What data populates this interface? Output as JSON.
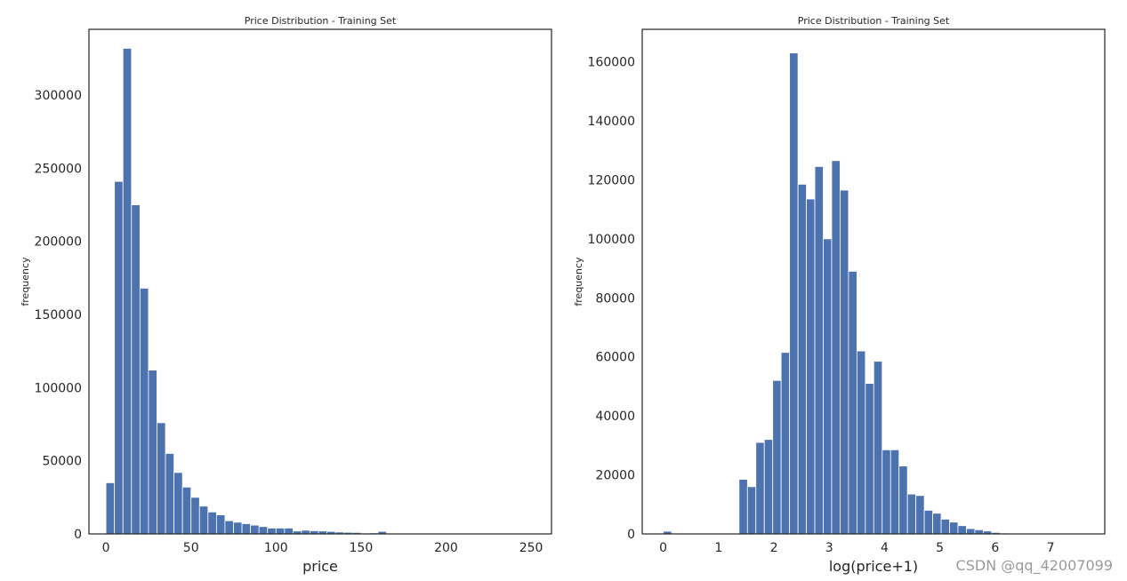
{
  "watermark": "CSDN @qq_42007099",
  "chart_data": [
    {
      "type": "bar",
      "title": "Price Distribution - Training Set",
      "xlabel": "price",
      "ylabel": "frequency",
      "xlim": [
        -10,
        262
      ],
      "ylim": [
        0,
        345000
      ],
      "xticks": [
        0,
        50,
        100,
        150,
        200,
        250
      ],
      "yticks": [
        0,
        50000,
        100000,
        150000,
        200000,
        250000,
        300000
      ],
      "color": "#4c72b0",
      "bins": 50,
      "bin_start": 0,
      "bin_width": 5.0,
      "values": [
        35000,
        241000,
        332000,
        225000,
        168000,
        112000,
        76000,
        55000,
        42000,
        32000,
        25000,
        19000,
        15000,
        13000,
        9000,
        8000,
        7000,
        6000,
        5000,
        4000,
        4000,
        4000,
        2000,
        2500,
        2200,
        2000,
        1700,
        1300,
        1100,
        1000,
        600,
        700,
        1700,
        500,
        400,
        300,
        250,
        200,
        150,
        120,
        100,
        80,
        60,
        50,
        40,
        30,
        25,
        20,
        15,
        10
      ],
      "grid": false
    },
    {
      "type": "bar",
      "title": "Price Distribution - Training Set",
      "xlabel": "log(price+1)",
      "ylabel": "frequency",
      "xlim": [
        -0.38,
        7.98
      ],
      "ylim": [
        0,
        171000
      ],
      "xticks": [
        0,
        1,
        2,
        3,
        4,
        5,
        6,
        7
      ],
      "yticks": [
        0,
        20000,
        40000,
        60000,
        80000,
        100000,
        120000,
        140000,
        160000
      ],
      "color": "#4c72b0",
      "bins": 50,
      "bin_start": 0,
      "bin_width": 0.1522,
      "values": [
        900,
        0,
        0,
        0,
        0,
        0,
        0,
        0,
        0,
        18500,
        16000,
        31000,
        32000,
        52000,
        61500,
        163000,
        118500,
        113500,
        124500,
        100000,
        126500,
        116500,
        89000,
        62000,
        51000,
        58500,
        28500,
        28500,
        23000,
        13500,
        13000,
        8000,
        7000,
        5000,
        4000,
        2800,
        1800,
        1400,
        1000,
        500,
        300,
        150,
        100,
        80,
        50,
        30,
        20,
        10,
        5,
        2
      ],
      "grid": false
    }
  ]
}
